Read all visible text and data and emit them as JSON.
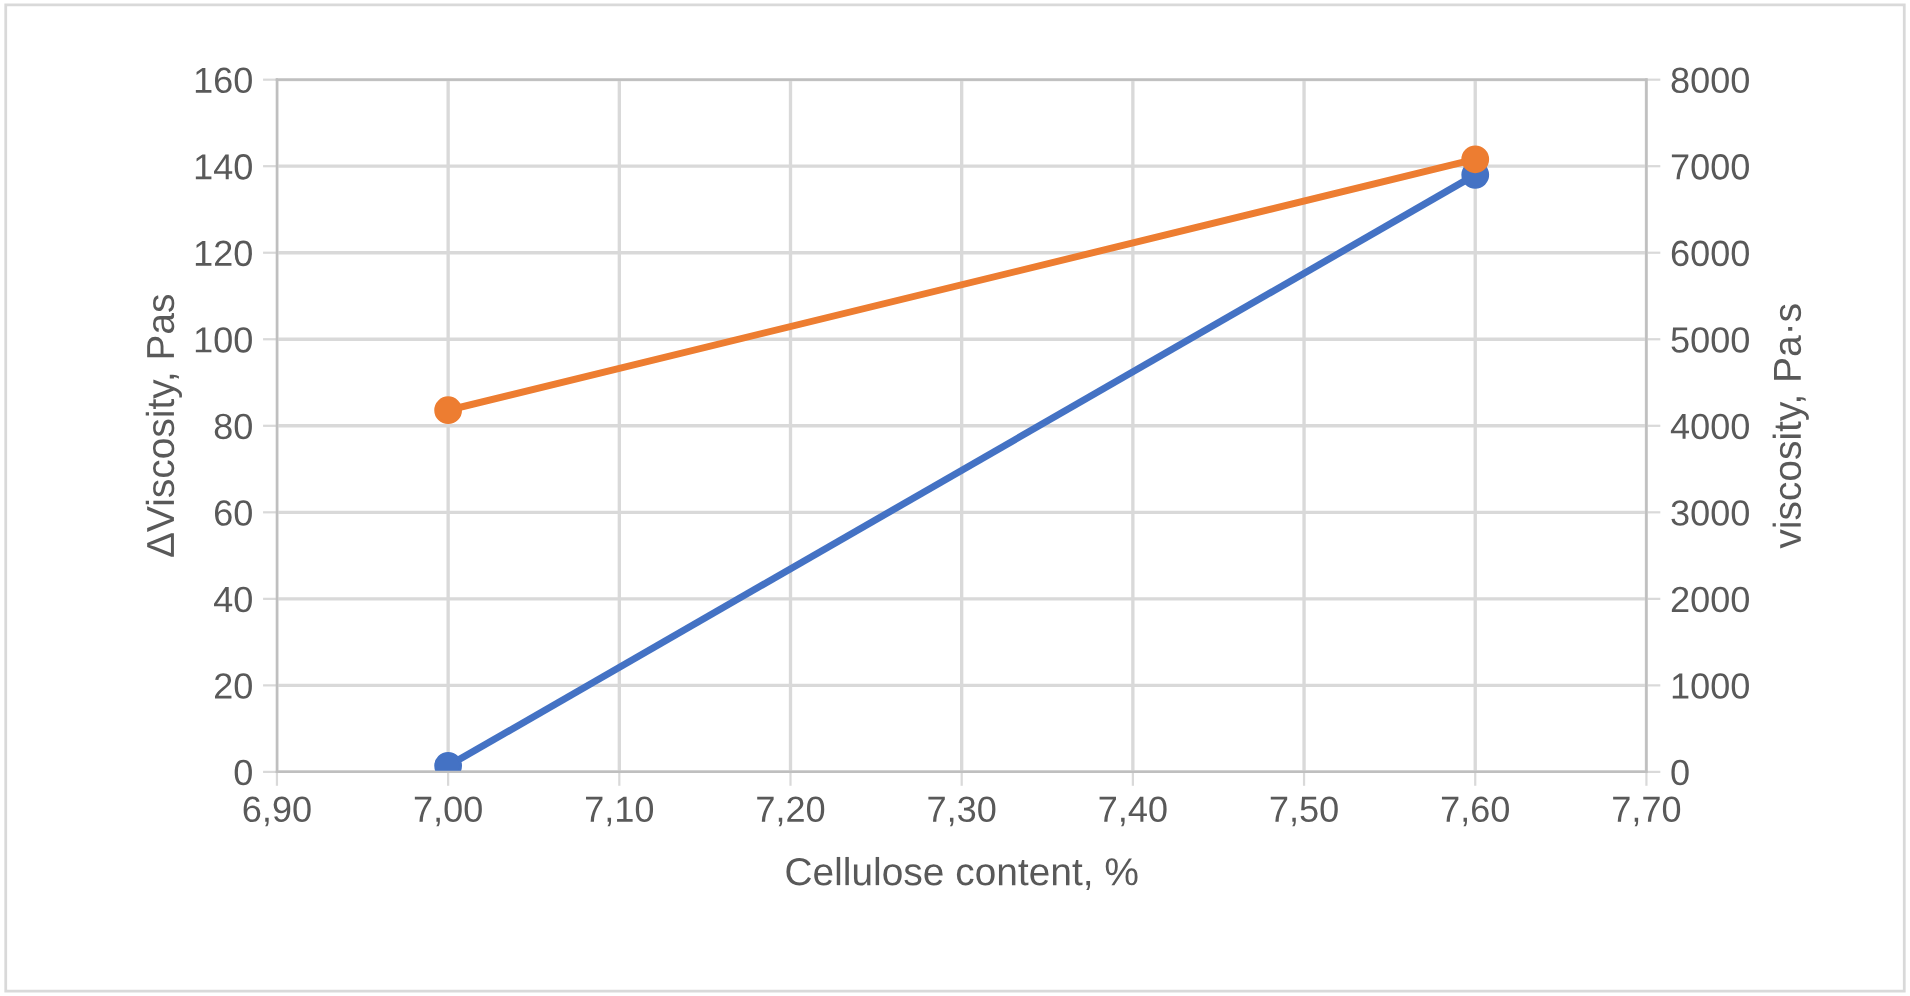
{
  "chart_data": {
    "type": "line",
    "xlabel": "Cellulose content, %",
    "ylabel": "ΔViscosity, Pas",
    "y2label": "viscosity, Pa·s",
    "x": [
      7.0,
      7.6
    ],
    "series": [
      {
        "color": "#4472c4",
        "values": [
          1.4,
          138
        ]
      },
      {
        "color": "#ed7d31",
        "values": [
          4180,
          7080
        ],
        "axis": "y2"
      }
    ],
    "xlim": [
      6.9,
      7.7
    ],
    "xticks": [
      {
        "value": 6.9,
        "label": "6,90"
      },
      {
        "value": 7.0,
        "label": "7,00"
      },
      {
        "value": 7.1,
        "label": "7,10"
      },
      {
        "value": 7.2,
        "label": "7,20"
      },
      {
        "value": 7.3,
        "label": "7,30"
      },
      {
        "value": 7.4,
        "label": "7,40"
      },
      {
        "value": 7.5,
        "label": "7,50"
      },
      {
        "value": 7.6,
        "label": "7,60"
      },
      {
        "value": 7.7,
        "label": "7,70"
      }
    ],
    "ylim": [
      0,
      160
    ],
    "yticks": [
      0,
      20,
      40,
      60,
      80,
      100,
      120,
      140,
      160
    ],
    "y2lim": [
      0,
      8000
    ],
    "y2ticks": [
      0,
      1000,
      2000,
      3000,
      4000,
      5000,
      6000,
      7000,
      8000
    ],
    "grid": true,
    "marker": "circle",
    "line_style": "solid"
  }
}
